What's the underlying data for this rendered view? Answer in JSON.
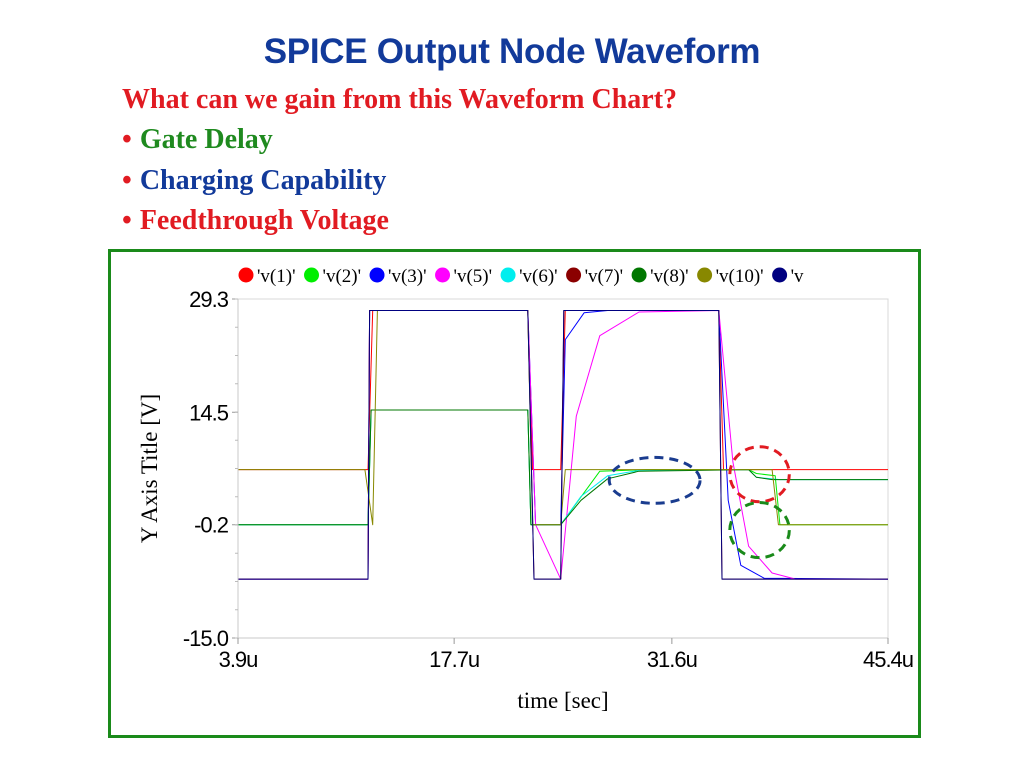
{
  "slide": {
    "title": "SPICE Output Node Waveform",
    "question": "What can we gain from this Waveform Chart?",
    "bullet_char": "•",
    "bullets": [
      "Gate Delay",
      "Charging Capability",
      "Feedthrough Voltage"
    ]
  },
  "colors": {
    "title": "#123a9a",
    "question": "#e11b22",
    "bullet_1": "#1f8a1f",
    "bullet_2": "#123a9a",
    "bullet_3": "#e11b22",
    "frame": "#1a8a1a"
  },
  "annotations": [
    {
      "shape": "dashed-ellipse",
      "color": "#1a3c8f",
      "center_x": 30.5,
      "center_y": 5.6,
      "rx_data": 2.9,
      "ry_data": 3.0
    },
    {
      "shape": "dashed-circle",
      "color": "#e11b22",
      "center_x": 37.2,
      "center_y": 6.4,
      "rx_data": 1.9,
      "ry_data": 3.6
    },
    {
      "shape": "dashed-circle",
      "color": "#1a8a1a",
      "center_x": 37.2,
      "center_y": -0.9,
      "rx_data": 1.9,
      "ry_data": 3.6
    }
  ],
  "chart_data": {
    "type": "line",
    "title": "",
    "xlabel": "time  [sec]",
    "ylabel": "Y Axis Title  [V]",
    "xlim": [
      3.9,
      45.4
    ],
    "ylim": [
      -15.0,
      29.3
    ],
    "x_unit": "u",
    "xticks": [
      "3.9u",
      "17.7u",
      "31.6u",
      "45.4u"
    ],
    "xtick_values": [
      3.9,
      17.7,
      31.6,
      45.4
    ],
    "yticks": [
      "29.3",
      "14.5",
      "-0.2",
      "-15.0"
    ],
    "ytick_values": [
      29.3,
      14.5,
      -0.2,
      -15.0
    ],
    "grid": false,
    "legend_position": "top",
    "series": [
      {
        "name": "'v(1)'",
        "color": "#ff0000",
        "points": [
          [
            3.9,
            7.0
          ],
          [
            10.0,
            7.0
          ],
          [
            12.2,
            7.0
          ],
          [
            12.5,
            27.8
          ],
          [
            22.4,
            27.8
          ],
          [
            22.7,
            7.0
          ],
          [
            24.5,
            7.0
          ],
          [
            24.8,
            27.8
          ],
          [
            34.6,
            27.8
          ],
          [
            34.9,
            7.0
          ],
          [
            45.4,
            7.0
          ]
        ]
      },
      {
        "name": "'v(2)'",
        "color": "#00ee00",
        "points": [
          [
            3.9,
            -0.2
          ],
          [
            12.2,
            -0.2
          ],
          [
            12.4,
            14.8
          ],
          [
            22.4,
            14.8
          ],
          [
            22.6,
            -0.2
          ],
          [
            24.5,
            -0.2
          ],
          [
            27.0,
            6.8
          ],
          [
            30.0,
            7.0
          ],
          [
            36.5,
            7.0
          ],
          [
            37.0,
            6.5
          ],
          [
            38.2,
            6.2
          ],
          [
            38.5,
            -0.2
          ],
          [
            45.4,
            -0.2
          ]
        ]
      },
      {
        "name": "'v(3)'",
        "color": "#0000ff",
        "points": [
          [
            3.9,
            -7.3
          ],
          [
            12.2,
            -7.3
          ],
          [
            12.3,
            27.8
          ],
          [
            22.4,
            27.8
          ],
          [
            22.9,
            -0.2
          ],
          [
            24.5,
            -0.2
          ],
          [
            24.8,
            24.0
          ],
          [
            26.0,
            27.5
          ],
          [
            27.5,
            27.8
          ],
          [
            34.6,
            27.8
          ],
          [
            35.2,
            3.0
          ],
          [
            36.0,
            -5.5
          ],
          [
            37.5,
            -7.2
          ],
          [
            45.4,
            -7.3
          ]
        ]
      },
      {
        "name": "'v(5)'",
        "color": "#ff00ff",
        "points": [
          [
            3.9,
            -7.3
          ],
          [
            12.2,
            -7.3
          ],
          [
            12.3,
            27.8
          ],
          [
            22.4,
            27.8
          ],
          [
            22.9,
            -0.2
          ],
          [
            24.5,
            -7.3
          ],
          [
            25.5,
            14.0
          ],
          [
            27.0,
            24.5
          ],
          [
            29.5,
            27.6
          ],
          [
            34.6,
            27.8
          ],
          [
            35.5,
            8.0
          ],
          [
            36.5,
            -3.0
          ],
          [
            38.0,
            -6.5
          ],
          [
            39.5,
            -7.3
          ],
          [
            45.4,
            -7.3
          ]
        ]
      },
      {
        "name": "'v(6)'",
        "color": "#00eeee",
        "points": [
          [
            3.9,
            -0.2
          ],
          [
            12.2,
            -0.2
          ],
          [
            12.4,
            14.8
          ],
          [
            22.4,
            14.8
          ],
          [
            22.6,
            -0.2
          ],
          [
            24.5,
            -0.2
          ],
          [
            25.8,
            3.5
          ],
          [
            27.5,
            6.2
          ],
          [
            29.5,
            6.9
          ],
          [
            36.5,
            7.0
          ],
          [
            37.0,
            6.0
          ],
          [
            38.5,
            5.7
          ],
          [
            45.4,
            5.7
          ]
        ]
      },
      {
        "name": "'v(7)'",
        "color": "#8b0000",
        "points": [
          [
            3.9,
            -7.3
          ],
          [
            12.2,
            -7.3
          ],
          [
            12.3,
            27.8
          ],
          [
            22.4,
            27.8
          ],
          [
            22.8,
            -7.3
          ],
          [
            24.5,
            -7.3
          ],
          [
            24.7,
            27.8
          ],
          [
            34.6,
            27.8
          ],
          [
            34.8,
            -7.3
          ],
          [
            45.4,
            -7.3
          ]
        ]
      },
      {
        "name": "'v(8)'",
        "color": "#007700",
        "points": [
          [
            3.9,
            -0.2
          ],
          [
            12.2,
            -0.2
          ],
          [
            12.4,
            14.8
          ],
          [
            22.4,
            14.8
          ],
          [
            22.6,
            -0.2
          ],
          [
            24.5,
            -0.2
          ],
          [
            25.8,
            3.0
          ],
          [
            27.5,
            5.8
          ],
          [
            29.5,
            6.8
          ],
          [
            36.5,
            7.0
          ],
          [
            37.0,
            6.0
          ],
          [
            38.0,
            5.7
          ],
          [
            45.4,
            5.7
          ]
        ]
      },
      {
        "name": "'v(10)'",
        "color": "#888800",
        "points": [
          [
            3.9,
            7.0
          ],
          [
            12.0,
            7.0
          ],
          [
            12.5,
            -0.2
          ],
          [
            12.8,
            27.8
          ],
          [
            22.4,
            27.8
          ],
          [
            22.7,
            -0.2
          ],
          [
            24.5,
            -0.2
          ],
          [
            24.8,
            7.0
          ],
          [
            38.0,
            7.0
          ],
          [
            38.4,
            -0.2
          ],
          [
            45.4,
            -0.2
          ]
        ]
      },
      {
        "name": "'v",
        "color": "#000080",
        "points": [
          [
            3.9,
            -7.3
          ],
          [
            12.2,
            -7.3
          ],
          [
            12.3,
            27.8
          ],
          [
            22.4,
            27.8
          ],
          [
            22.8,
            -7.3
          ],
          [
            24.5,
            -7.3
          ],
          [
            24.7,
            27.8
          ],
          [
            34.6,
            27.8
          ],
          [
            34.8,
            -7.3
          ],
          [
            45.4,
            -7.3
          ]
        ]
      }
    ]
  }
}
